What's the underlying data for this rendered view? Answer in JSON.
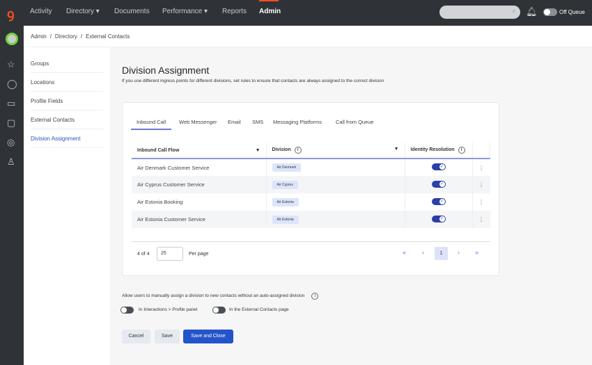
{
  "topnav": {
    "items": [
      "Activity",
      "Directory ▾",
      "Documents",
      "Performance ▾",
      "Reports",
      "Admin"
    ],
    "active": "Admin",
    "queue_label": "Off Queue"
  },
  "breadcrumb": [
    "Admin",
    "/",
    "Directory",
    "/",
    "External Contacts"
  ],
  "subnav": [
    "Groups",
    "Locations",
    "Profile Fields",
    "External Contacts",
    "Division Assignment"
  ],
  "page": {
    "title": "Division Assignment",
    "description": "If you use different ingress points for different divisions, set rules to ensure that contacts are always assigned to the correct division"
  },
  "tabs": [
    "Inbound Call",
    "Web Messenger",
    "Email",
    "SMS",
    "Messaging Platforms",
    "Call from Queue"
  ],
  "table": {
    "headers": [
      "Inbound Call Flow",
      "Division",
      "Identity Resolution"
    ],
    "rows": [
      {
        "flow": "Air Denmark Customer Service",
        "division": "Air Denmark",
        "identity": true
      },
      {
        "flow": "Air Cyprus Customer Service",
        "division": "Air Cyprus",
        "identity": true
      },
      {
        "flow": "Air Estonia Booking",
        "division": "Air Estonia",
        "identity": true
      },
      {
        "flow": "Air Estonia Customer Service",
        "division": "Air Estonia",
        "identity": true
      }
    ]
  },
  "pagination": {
    "count": "4 of 4",
    "per_page": "25",
    "per_page_label": "Per page",
    "current": "1"
  },
  "manual": {
    "text": "Allow users to manually assign a division to new contacts without an auto-assigned division",
    "toggle1": "In Interactions > Profile panel",
    "toggle2": "In the External Contacts page"
  },
  "buttons": {
    "cancel": "Cancel",
    "save": "Save",
    "save_close": "Save and Close"
  },
  "colors": {
    "accent": "#ff4f1f",
    "primary": "#2454c9"
  }
}
